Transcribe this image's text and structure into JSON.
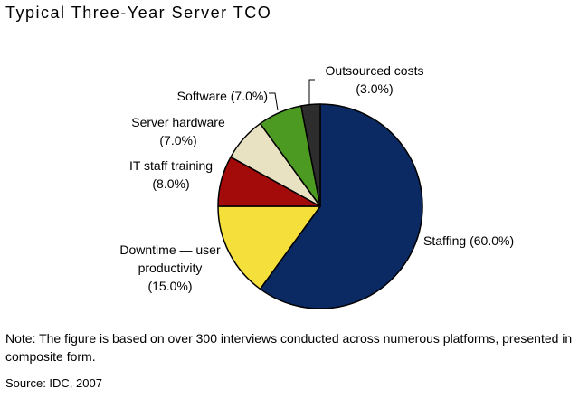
{
  "chart_data": {
    "type": "pie",
    "title": "Typical Three-Year Server TCO",
    "slices": [
      {
        "name": "Staffing",
        "value": 60.0,
        "label": "Staffing (60.0%)",
        "color": "#0b2a63"
      },
      {
        "name": "Downtime — user productivity",
        "value": 15.0,
        "label_lines": [
          "Downtime — user",
          "productivity",
          "(15.0%)"
        ],
        "color": "#f5df3a"
      },
      {
        "name": "IT staff training",
        "value": 8.0,
        "label_lines": [
          "IT staff training",
          "(8.0%)"
        ],
        "color": "#a30a0a"
      },
      {
        "name": "Server hardware",
        "value": 7.0,
        "label_lines": [
          "Server hardware",
          "(7.0%)"
        ],
        "color": "#e9e2c2"
      },
      {
        "name": "Software",
        "value": 7.0,
        "label": "Software (7.0%)",
        "color": "#4c9a22"
      },
      {
        "name": "Outsourced costs",
        "value": 3.0,
        "label_lines": [
          "Outsourced costs",
          "(3.0%)"
        ],
        "color": "#2d2d2d"
      }
    ],
    "start": "12 o'clock",
    "direction": "clockwise"
  },
  "note": "Note: The figure is based on over 300 interviews conducted across numerous platforms, presented in composite form.",
  "source": "Source: IDC, 2007"
}
